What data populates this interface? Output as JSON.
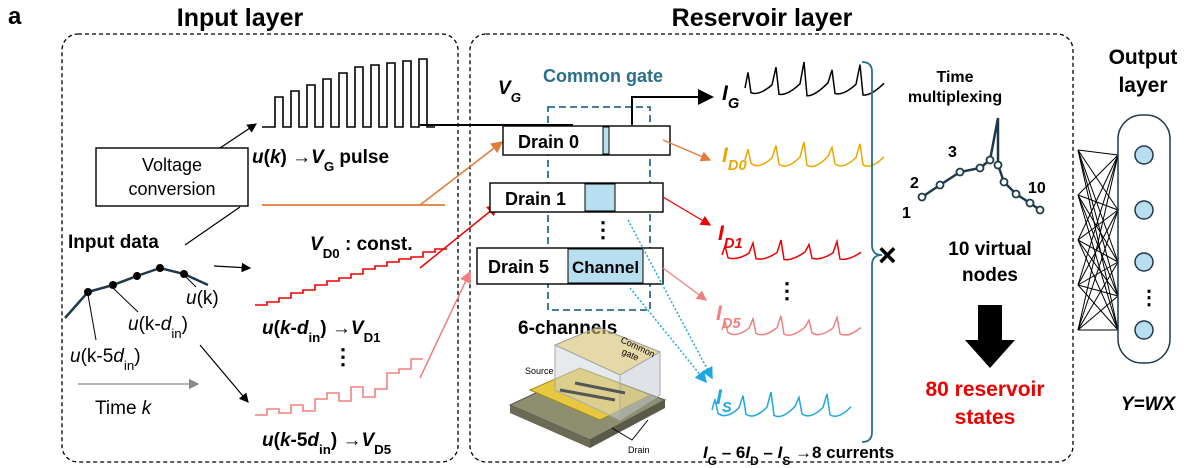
{
  "panel_label": "a",
  "input_layer": {
    "title": "Input layer",
    "voltage_conversion": [
      "Voltage",
      "conversion"
    ],
    "input_data": "Input data",
    "u_k": [
      "u",
      "(k)"
    ],
    "u_k_din": [
      "u",
      "(k-",
      "d",
      "in",
      ")"
    ],
    "u_k_5din": [
      "u",
      "(k-5",
      "d",
      "in",
      ")"
    ],
    "time": [
      "Time ",
      "k"
    ],
    "gate_pulse": [
      "u",
      "(",
      "k",
      ") →",
      "V",
      "G",
      " pulse"
    ],
    "drain0_const": [
      "V",
      "D0",
      " : const."
    ],
    "drain1_input": [
      "u",
      "(",
      "k",
      "-",
      "d",
      "in",
      ") →",
      "V",
      "D1"
    ],
    "dots": "⋮",
    "drain5_input": [
      "u",
      "(",
      "k",
      "-5",
      "d",
      "in",
      ") →",
      "V",
      "D5"
    ]
  },
  "reservoir_layer": {
    "title": "Reservoir layer",
    "gate_voltage": [
      "V",
      "G"
    ],
    "common_gate": "Common gate",
    "drains": [
      "Drain 0",
      "Drain 1",
      "Drain 5"
    ],
    "drain_dots": "⋮",
    "channel": "Channel",
    "six_channels": "6-channels",
    "device": {
      "common_gate": [
        "Common",
        "gate"
      ],
      "source": "Source",
      "drain": "Drain"
    },
    "currents": [
      [
        "I",
        "G"
      ],
      [
        "I",
        "D0"
      ],
      [
        "I",
        "D1"
      ],
      [
        "I",
        "D5"
      ],
      [
        "I",
        "S"
      ]
    ],
    "current_dots": "⋮",
    "summary": [
      "I",
      "G",
      " – 6",
      "I",
      "D",
      " – ",
      "I",
      "S",
      " →8 currents"
    ],
    "time_multiplexing": [
      "Time",
      "multiplexing"
    ],
    "node_numbers": [
      "1",
      "2",
      "3",
      "10"
    ],
    "virtual_nodes": [
      "10 virtual",
      "nodes"
    ],
    "reservoir_states": [
      "80 reservoir",
      "states"
    ]
  },
  "output_layer": {
    "title": [
      "Output",
      "layer"
    ],
    "dots": "⋮",
    "equation": "Y=WX"
  }
}
